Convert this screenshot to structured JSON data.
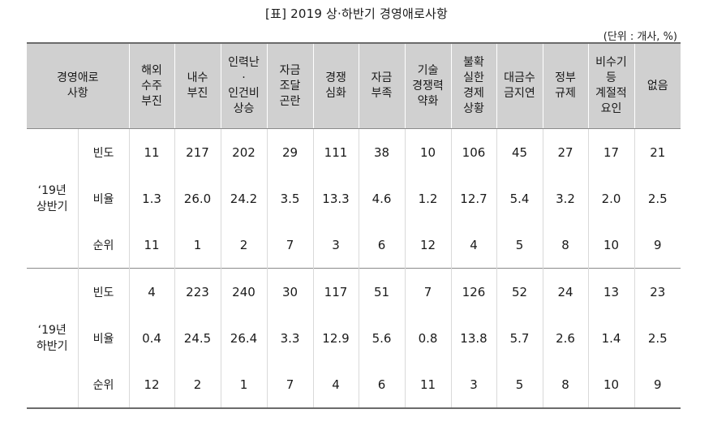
{
  "title": "[표] 2019 상·하반기 경영애로사항",
  "unit": "(단위 : 개사, %)",
  "header": {
    "corner": [
      "경영애로",
      "사항"
    ],
    "columns": [
      [
        "해외",
        "수주",
        "부진"
      ],
      [
        "내수",
        "부진"
      ],
      [
        "인력난",
        "·",
        "인건비",
        "상승"
      ],
      [
        "자금",
        "조달",
        "곤란"
      ],
      [
        "경쟁",
        "심화"
      ],
      [
        "자금",
        "부족"
      ],
      [
        "기술",
        "경쟁력",
        "약화"
      ],
      [
        "불확",
        "실한",
        "경제",
        "상황"
      ],
      [
        "대금수",
        "금지연"
      ],
      [
        "정부",
        "규제"
      ],
      [
        "비수기",
        "등",
        "계절적",
        "요인"
      ],
      [
        "없음"
      ]
    ]
  },
  "periods": [
    {
      "label": [
        "‘19년",
        "상반기"
      ],
      "rows": [
        {
          "label": "빈도",
          "values": [
            "11",
            "217",
            "202",
            "29",
            "111",
            "38",
            "10",
            "106",
            "45",
            "27",
            "17",
            "21"
          ]
        },
        {
          "label": "비율",
          "values": [
            "1.3",
            "26.0",
            "24.2",
            "3.5",
            "13.3",
            "4.6",
            "1.2",
            "12.7",
            "5.4",
            "3.2",
            "2.0",
            "2.5"
          ]
        },
        {
          "label": "순위",
          "values": [
            "11",
            "1",
            "2",
            "7",
            "3",
            "6",
            "12",
            "4",
            "5",
            "8",
            "10",
            "9"
          ]
        }
      ]
    },
    {
      "label": [
        "‘19년",
        "하반기"
      ],
      "rows": [
        {
          "label": "빈도",
          "values": [
            "4",
            "223",
            "240",
            "30",
            "117",
            "51",
            "7",
            "126",
            "52",
            "24",
            "13",
            "23"
          ]
        },
        {
          "label": "비율",
          "values": [
            "0.4",
            "24.5",
            "26.4",
            "3.3",
            "12.9",
            "5.6",
            "0.8",
            "13.8",
            "5.7",
            "2.6",
            "1.4",
            "2.5"
          ]
        },
        {
          "label": "순위",
          "values": [
            "12",
            "2",
            "1",
            "7",
            "4",
            "6",
            "11",
            "3",
            "5",
            "8",
            "10",
            "9"
          ]
        }
      ]
    }
  ]
}
